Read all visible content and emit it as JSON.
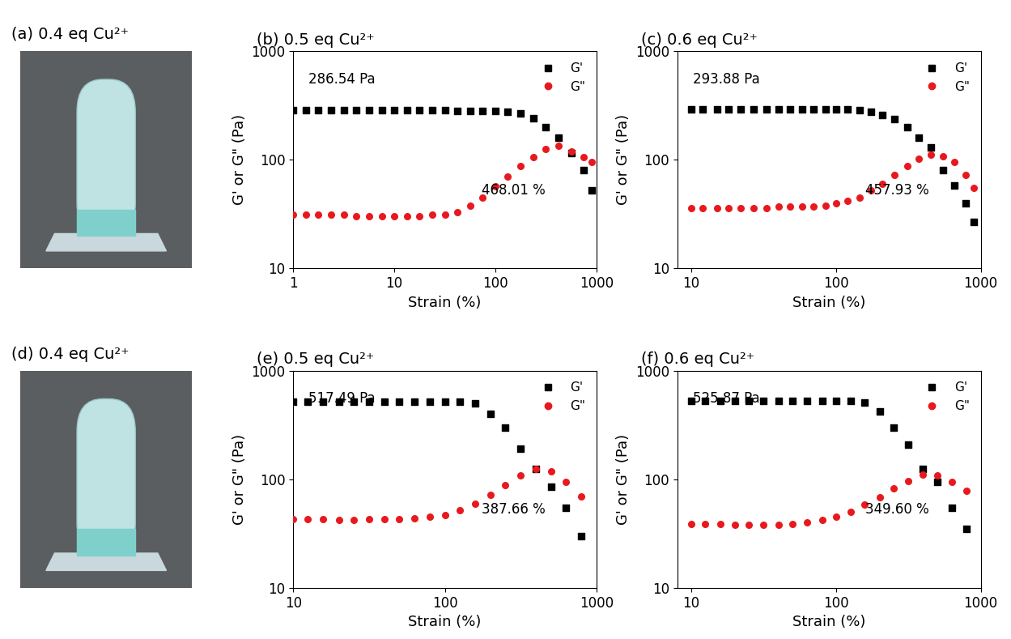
{
  "photos": [
    {
      "label": "(a) 0.4 eq Cu²⁺"
    },
    {
      "label": "(d) 0.4 eq Cu²⁺"
    }
  ],
  "chart_data": [
    {
      "type": "scatter",
      "title": "(b) 0.5 eq Cu²⁺",
      "xlabel": "Strain (%)",
      "ylabel": "G' or G\" (Pa)",
      "log": true,
      "legend": "upper right",
      "xlim": [
        1,
        1000
      ],
      "ylim": [
        10,
        1000
      ],
      "xticks": [
        1,
        10,
        100,
        1000
      ],
      "yticks": [
        10,
        100,
        1000
      ],
      "x": [
        1,
        1.33,
        1.78,
        2.37,
        3.16,
        4.22,
        5.62,
        7.5,
        10,
        13.3,
        17.8,
        23.7,
        31.6,
        42.2,
        56.2,
        75,
        100,
        133,
        178,
        237,
        316,
        422,
        562,
        750,
        900
      ],
      "series": [
        {
          "name": "G'",
          "color": "#000000",
          "marker": "square",
          "values": [
            286,
            286,
            286,
            286,
            286,
            285,
            285,
            285,
            285,
            285,
            285,
            284,
            284,
            283,
            283,
            282,
            280,
            276,
            268,
            240,
            200,
            160,
            115,
            80,
            52
          ]
        },
        {
          "name": "G\"",
          "color": "#e8191e",
          "marker": "circle",
          "values": [
            31,
            31,
            31,
            31,
            31,
            30,
            30,
            30,
            30,
            30,
            30,
            31,
            31,
            33,
            38,
            45,
            57,
            70,
            88,
            105,
            125,
            135,
            120,
            105,
            95
          ]
        }
      ],
      "annotations": [
        "286.54 Pa",
        "468.01 %"
      ]
    },
    {
      "type": "scatter",
      "title": "(c) 0.6 eq Cu²⁺",
      "xlabel": "Strain (%)",
      "ylabel": "G' or G\" (Pa)",
      "log": true,
      "legend": "upper right",
      "xlim": [
        8,
        1000
      ],
      "ylim": [
        10,
        1000
      ],
      "xticks": [
        10,
        100,
        1000
      ],
      "yticks": [
        10,
        100,
        1000
      ],
      "x": [
        10,
        12,
        15,
        18,
        22,
        27,
        33,
        40,
        48,
        58,
        70,
        85,
        100,
        120,
        145,
        175,
        210,
        255,
        310,
        375,
        455,
        550,
        660,
        790,
        900
      ],
      "series": [
        {
          "name": "G'",
          "color": "#000000",
          "marker": "square",
          "values": [
            290,
            290,
            290,
            290,
            290,
            291,
            291,
            291,
            291,
            290,
            290,
            290,
            290,
            289,
            285,
            275,
            260,
            235,
            200,
            160,
            130,
            80,
            58,
            40,
            27
          ]
        },
        {
          "name": "G\"",
          "color": "#e8191e",
          "marker": "circle",
          "values": [
            36,
            36,
            36,
            36,
            36,
            36,
            36,
            37,
            37,
            37,
            37,
            38,
            40,
            42,
            45,
            52,
            60,
            72,
            88,
            103,
            112,
            108,
            95,
            72,
            55
          ]
        }
      ],
      "annotations": [
        "293.88 Pa",
        "457.93 %"
      ]
    },
    {
      "type": "scatter",
      "title": "(e) 0.5 eq Cu²⁺",
      "xlabel": "Strain (%)",
      "ylabel": "G' or G\" (Pa)",
      "log": true,
      "legend": "upper right",
      "xlim": [
        10,
        1000
      ],
      "ylim": [
        10,
        1000
      ],
      "xticks": [
        10,
        100,
        1000
      ],
      "yticks": [
        10,
        100,
        1000
      ],
      "x": [
        10,
        12.5,
        15.8,
        20,
        25,
        31.6,
        40,
        50,
        63,
        80,
        100,
        126,
        158,
        200,
        251,
        316,
        398,
        501,
        631,
        794
      ],
      "series": [
        {
          "name": "G'",
          "color": "#000000",
          "marker": "square",
          "values": [
            517,
            517,
            517,
            517,
            517,
            515,
            515,
            517,
            517,
            517,
            517,
            517,
            500,
            400,
            300,
            190,
            125,
            85,
            55,
            30
          ]
        },
        {
          "name": "G\"",
          "color": "#e8191e",
          "marker": "circle",
          "values": [
            43,
            43,
            43,
            42,
            42,
            43,
            43,
            43,
            44,
            45,
            47,
            52,
            60,
            72,
            88,
            108,
            125,
            118,
            95,
            70
          ]
        }
      ],
      "annotations": [
        "517.49 Pa",
        "387.66 %"
      ]
    },
    {
      "type": "scatter",
      "title": "(f) 0.6 eq Cu²⁺",
      "xlabel": "Strain (%)",
      "ylabel": "G' or G\" (Pa)",
      "log": true,
      "legend": "upper right",
      "xlim": [
        8,
        1000
      ],
      "ylim": [
        10,
        1000
      ],
      "xticks": [
        10,
        100,
        1000
      ],
      "yticks": [
        10,
        100,
        1000
      ],
      "x": [
        10,
        12.5,
        15.8,
        20,
        25,
        31.6,
        40,
        50,
        63,
        80,
        100,
        126,
        158,
        200,
        251,
        316,
        398,
        501,
        631,
        794
      ],
      "series": [
        {
          "name": "G'",
          "color": "#000000",
          "marker": "square",
          "values": [
            525,
            525,
            525,
            525,
            526,
            526,
            526,
            526,
            526,
            525,
            525,
            522,
            510,
            420,
            300,
            210,
            125,
            95,
            55,
            35
          ]
        },
        {
          "name": "G\"",
          "color": "#e8191e",
          "marker": "circle",
          "values": [
            39,
            39,
            39,
            38,
            38,
            38,
            38,
            39,
            40,
            42,
            45,
            50,
            58,
            68,
            82,
            96,
            110,
            108,
            95,
            78
          ]
        }
      ],
      "annotations": [
        "525.87 Pa",
        "349.60 %"
      ]
    }
  ]
}
